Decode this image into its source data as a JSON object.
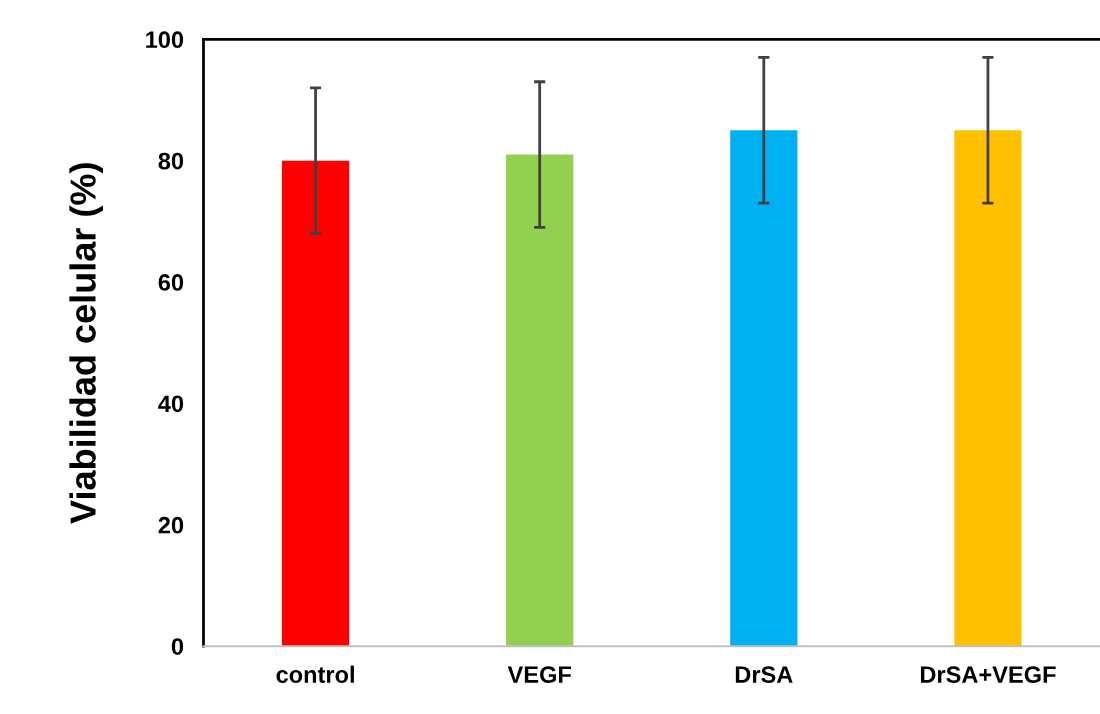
{
  "chart_data": {
    "type": "bar",
    "ylabel": "Viabilidad celular (%)",
    "categories": [
      "control",
      "VEGF",
      "DrSA",
      "DrSA+VEGF"
    ],
    "values": [
      80,
      81,
      85,
      85
    ],
    "errors": [
      12,
      12,
      12,
      12
    ],
    "colors": [
      "#ff0000",
      "#92d050",
      "#00b0f0",
      "#ffc000"
    ],
    "ylim": [
      0,
      100
    ],
    "yticks": [
      0,
      20,
      40,
      60,
      80,
      100
    ],
    "grid": false,
    "legend": false
  }
}
